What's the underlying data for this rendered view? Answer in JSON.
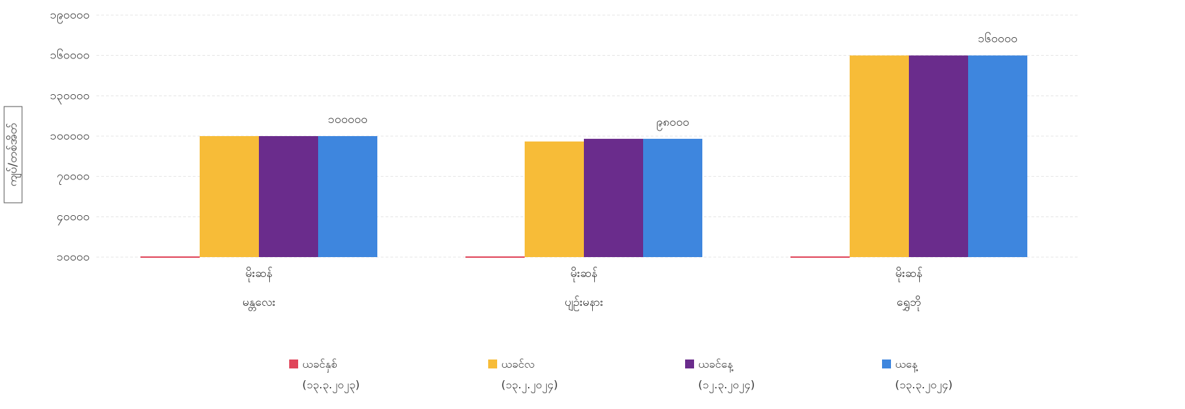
{
  "chart_data": {
    "type": "bar",
    "y_label": "ကျပ်/တစ်အိတ်",
    "categories": [
      "မိုးဆန်",
      "မိုးဆန်",
      "မိုးဆန်"
    ],
    "category_groups": [
      "မန္တလေး",
      "ပျဉ်းမနား",
      "ရွှေဘို"
    ],
    "series": [
      {
        "name": "ယခင်နှစ်\n(၁၃.၃.၂၀၂၃)",
        "color": "#e0455a",
        "values": [
          10000,
          10000,
          10000
        ]
      },
      {
        "name": "ယခင်လ\n(၁၃.၂.၂၀၂၄)",
        "color": "#f7bc38",
        "values": [
          100000,
          96000,
          160000
        ]
      },
      {
        "name": "ယခင်နေ့\n(၁၂.၃.၂၀၂၄)",
        "color": "#6a2c8c",
        "values": [
          100000,
          98000,
          160000
        ]
      },
      {
        "name": "ယနေ့\n(၁၃.၃.၂၀၂၄)",
        "color": "#3e86de",
        "values": [
          100000,
          98000,
          160000
        ],
        "value_labels": [
          "၁၀၀၀၀၀",
          "၉၈၀၀၀",
          "၁၆၀၀၀၀"
        ]
      }
    ],
    "ylim": [
      10000,
      190000
    ],
    "yticks": [
      {
        "value": 10000,
        "label": "၁၀၀၀၀"
      },
      {
        "value": 40000,
        "label": "၄၀၀၀၀"
      },
      {
        "value": 70000,
        "label": "၇၀၀၀၀"
      },
      {
        "value": 100000,
        "label": "၁၀၀၀၀၀"
      },
      {
        "value": 130000,
        "label": "၁၃၀၀၀၀"
      },
      {
        "value": 160000,
        "label": "၁၆၀၀၀၀"
      },
      {
        "value": 190000,
        "label": "၁၉၀၀၀၀"
      }
    ],
    "grid": true
  }
}
